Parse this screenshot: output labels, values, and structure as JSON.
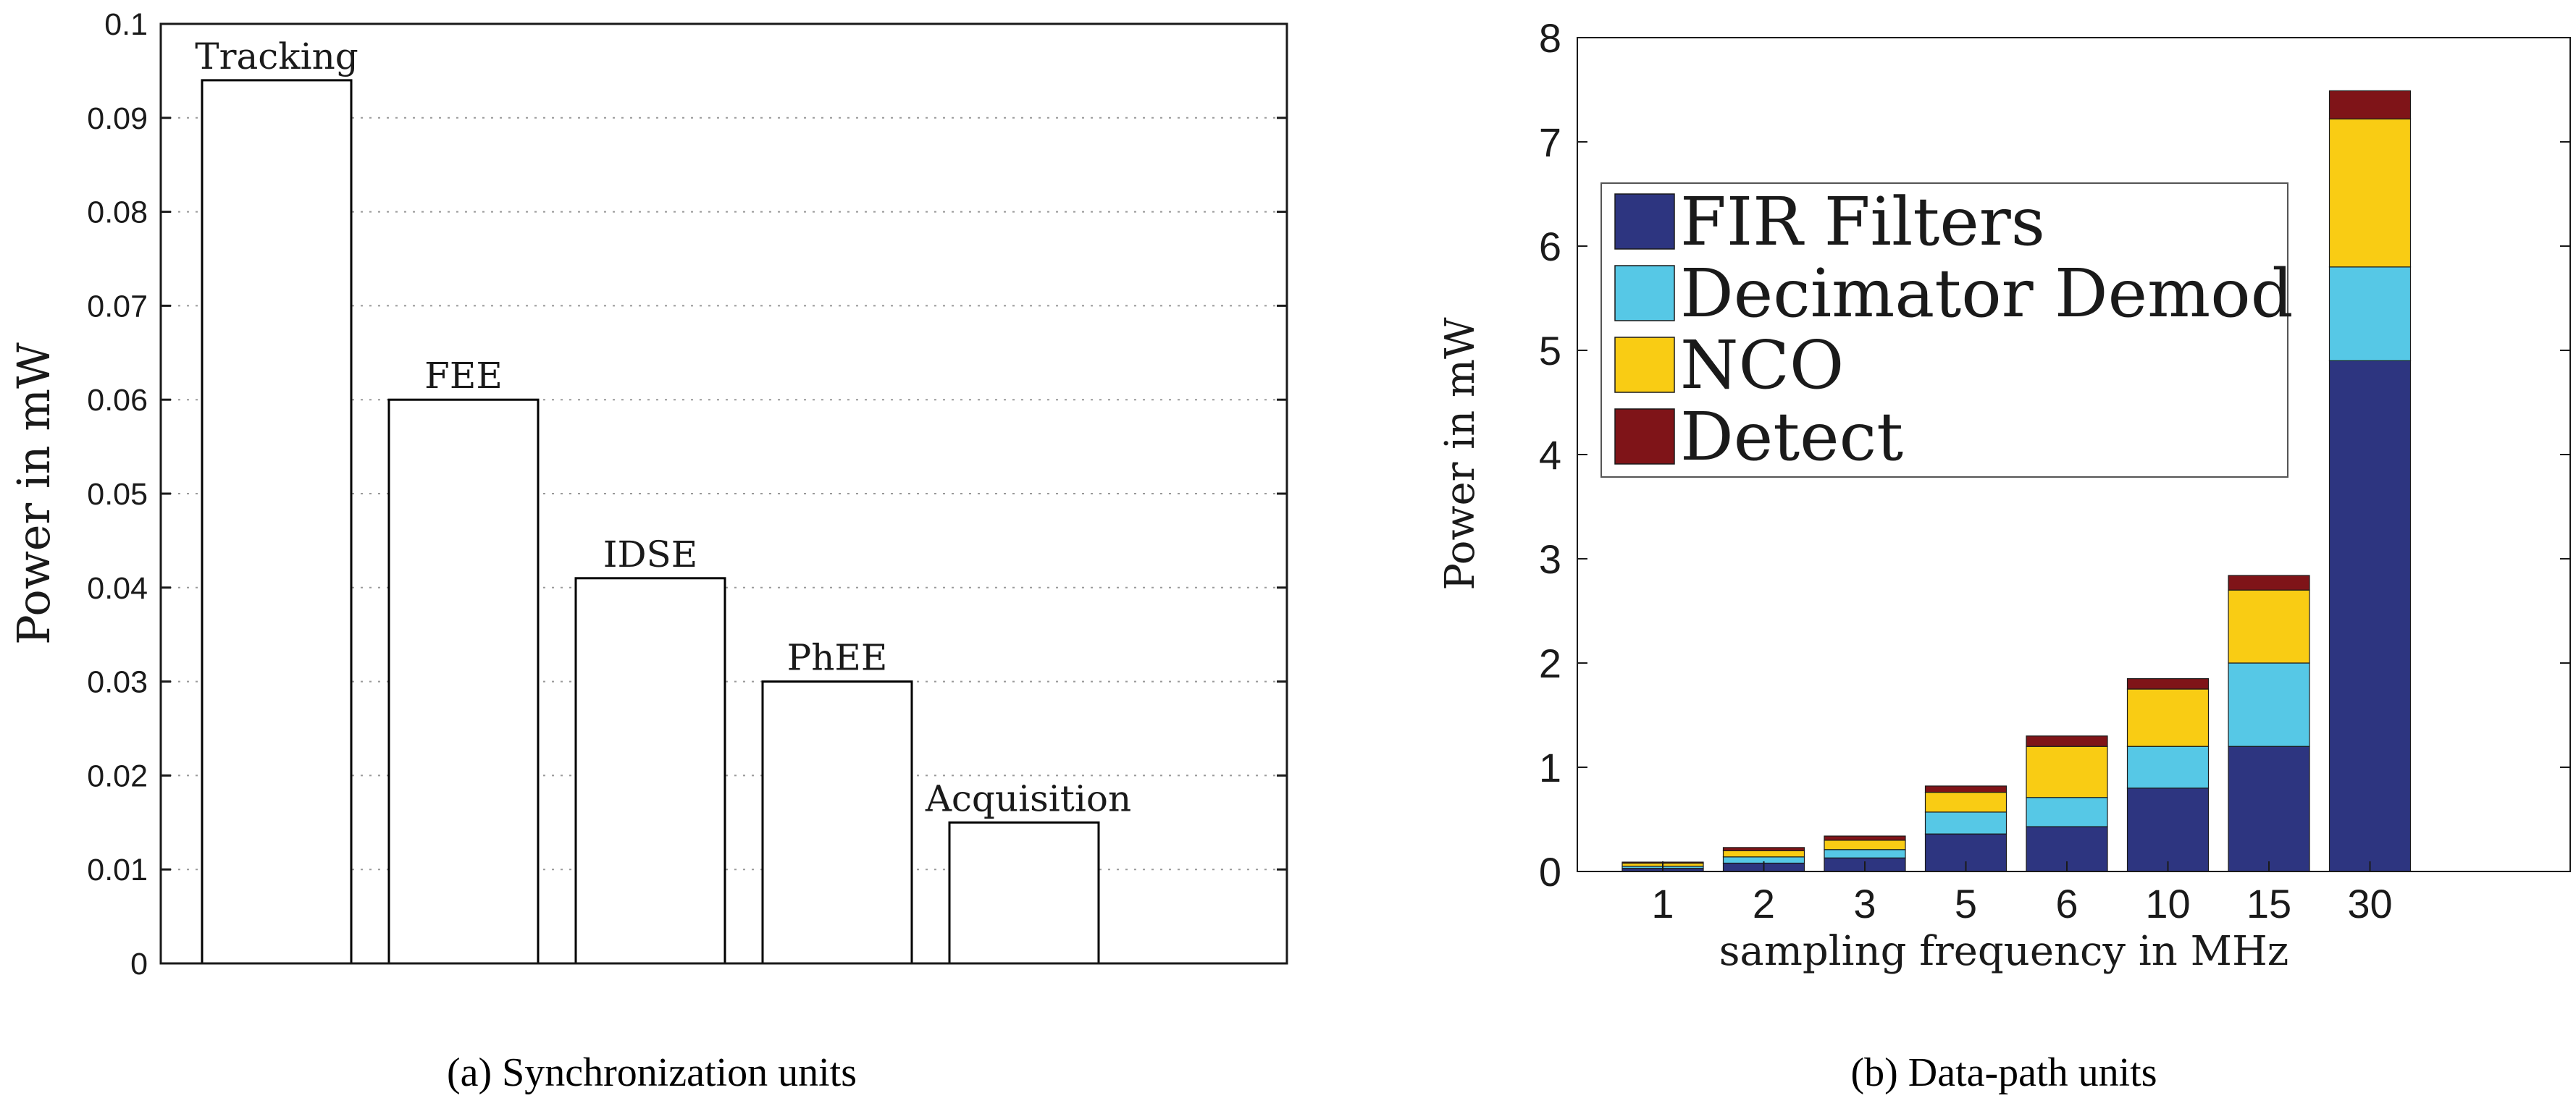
{
  "chart_data": [
    {
      "type": "bar",
      "title": "",
      "caption": "(a)  Synchronization units",
      "xlabel": "",
      "ylabel": "Power in mW",
      "ylim": [
        0,
        0.1
      ],
      "yticks": [
        "0",
        "0.01",
        "0.02",
        "0.03",
        "0.04",
        "0.05",
        "0.06",
        "0.07",
        "0.08",
        "0.09",
        "0.1"
      ],
      "grid": "y-dotted",
      "categories": [
        "Tracking",
        "FEE",
        "IDSE",
        "PhEE",
        "Acquisition"
      ],
      "values": [
        0.094,
        0.06,
        0.041,
        0.03,
        0.015
      ],
      "colors": {
        "bar_fill": "#ffffff",
        "bar_stroke": "#000000",
        "grid": "#999999"
      }
    },
    {
      "type": "bar",
      "stacked": true,
      "title": "",
      "caption": "(b)  Data-path units",
      "xlabel": "sampling frequency in MHz",
      "ylabel": "Power in mW",
      "ylim": [
        0,
        8
      ],
      "yticks": [
        "0",
        "1",
        "2",
        "3",
        "4",
        "5",
        "6",
        "7",
        "8"
      ],
      "legend_position": "top-left",
      "categories": [
        "1",
        "2",
        "3",
        "5",
        "6",
        "10",
        "15",
        "30"
      ],
      "series": [
        {
          "name": "FIR Filters",
          "color": "#2d3580",
          "values": [
            0.03,
            0.08,
            0.13,
            0.36,
            0.43,
            0.8,
            1.2,
            4.9
          ]
        },
        {
          "name": "Decimator Demod",
          "color": "#56c8e6",
          "values": [
            0.02,
            0.06,
            0.08,
            0.21,
            0.28,
            0.4,
            0.8,
            0.9
          ]
        },
        {
          "name": "NCO",
          "color": "#f9cc14",
          "values": [
            0.03,
            0.06,
            0.09,
            0.19,
            0.49,
            0.55,
            0.7,
            1.42
          ]
        },
        {
          "name": "Detect",
          "color": "#7f1418",
          "values": [
            0.01,
            0.03,
            0.04,
            0.06,
            0.1,
            0.1,
            0.14,
            0.27
          ]
        }
      ]
    }
  ]
}
